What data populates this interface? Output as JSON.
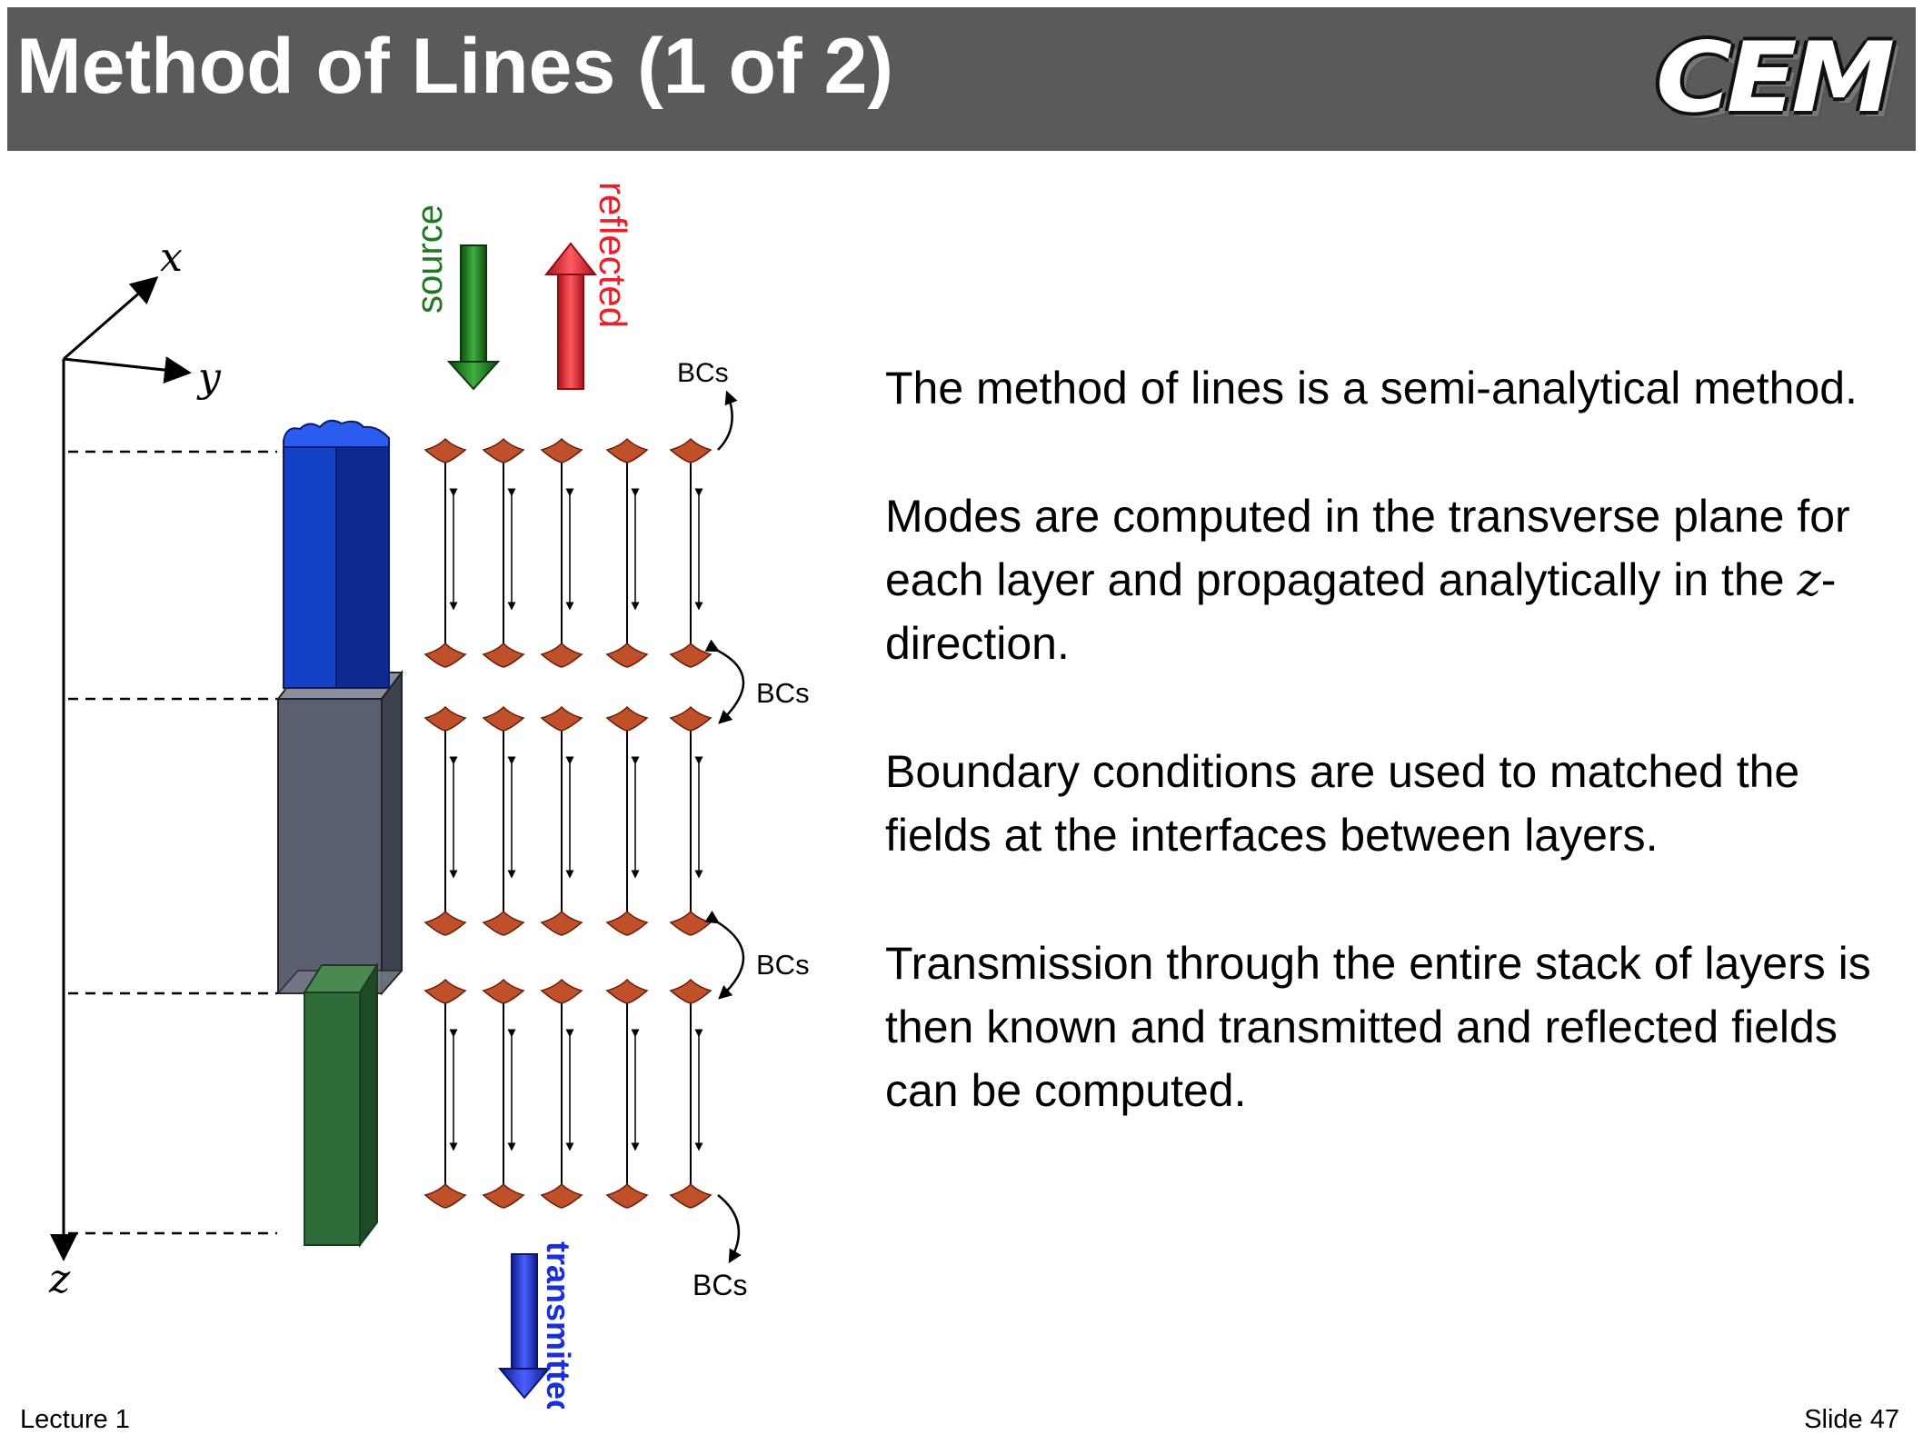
{
  "slide": {
    "title": "Method of Lines (1 of 2)",
    "logo_text": "CEM",
    "footer_left": "Lecture 1",
    "footer_right": "Slide 47"
  },
  "diagram": {
    "axis_labels": {
      "x": "x",
      "y": "y",
      "z": "z"
    },
    "arrow_labels": {
      "source": "source",
      "reflected": "reflected",
      "transmitted": "transmitted"
    },
    "bc_label": "BCs",
    "colors": {
      "header": "#5a5a5a",
      "source": "#1f7a1f",
      "reflected": "#e8202a",
      "transmitted": "#1a2fd6",
      "blue_layer": "#0f2fa0",
      "gray_layer": "#5b6070",
      "green_layer": "#2f6b38",
      "mode": "#c0502a"
    },
    "layers": [
      "blue-star-waveguide",
      "gray-box",
      "green-box"
    ]
  },
  "text": {
    "p1": "The method of lines is a semi-analytical method.",
    "p2_before": "Modes are computed in the transverse plane for each layer and propagated analytically in the ",
    "p2_var": "z",
    "p2_after": "-direction.",
    "p3": "Boundary conditions are used to matched the fields at the interfaces between layers.",
    "p4": "Transmission through the entire stack of layers is then known and transmitted and reflected fields can be computed."
  }
}
